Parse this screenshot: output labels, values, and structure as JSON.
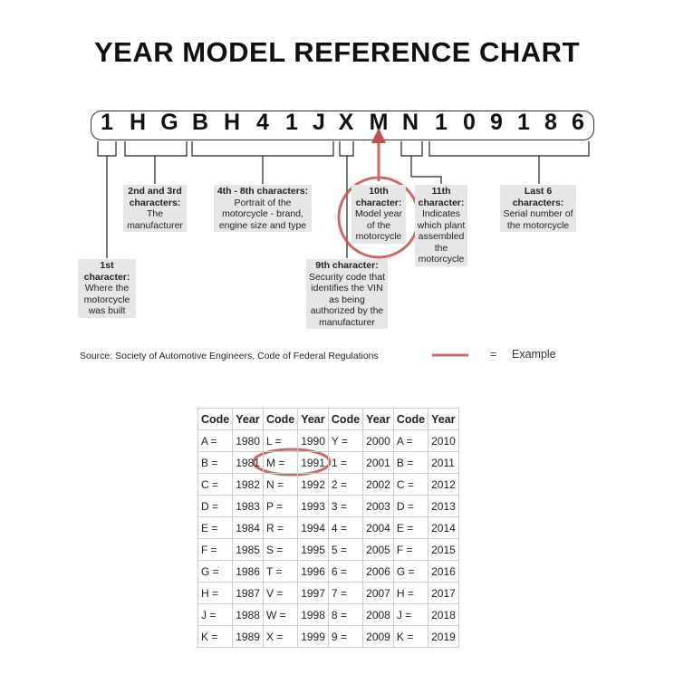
{
  "title": "YEAR MODEL REFERENCE CHART",
  "vin": [
    "1",
    "H",
    "G",
    "B",
    "H",
    "4",
    "1",
    "J",
    "X",
    "M",
    "N",
    "1",
    "0",
    "9",
    "1",
    "8",
    "6"
  ],
  "labels": {
    "c1": {
      "head": "1st character:",
      "body": "Where the motorcycle was built"
    },
    "c23": {
      "head": "2nd and 3rd characters:",
      "body": "The manufacturer"
    },
    "c48": {
      "head": "4th - 8th characters:",
      "body": "Portrait of the motorcycle - brand, engine size and type"
    },
    "c9": {
      "head": "9th character:",
      "body": "Security code that identifies the VIN as being authorized by the manufacturer"
    },
    "c10": {
      "head": "10th character:",
      "body": "Model year of the motorcycle"
    },
    "c11": {
      "head": "11th character:",
      "body": "Indicates which plant assembled the motorcycle"
    },
    "last6": {
      "head": "Last 6 characters:",
      "body": "Serial number of the motorcycle"
    }
  },
  "source": "Source:  Society of Automotive Engineers, Code of Federal Regulations",
  "legend": {
    "equals": "=",
    "label": "Example",
    "color": "#c0504d"
  },
  "table": {
    "headers": [
      "Code",
      "Year",
      "Code",
      "Year",
      "Code",
      "Year",
      "Code",
      "Year"
    ],
    "rows": [
      [
        "A =",
        "1980",
        "L =",
        "1990",
        "Y =",
        "2000",
        "A =",
        "2010"
      ],
      [
        "B =",
        "1981",
        "M =",
        "1991",
        "1 =",
        "2001",
        "B =",
        "2011"
      ],
      [
        "C =",
        "1982",
        "N =",
        "1992",
        "2 =",
        "2002",
        "C =",
        "2012"
      ],
      [
        "D =",
        "1983",
        "P =",
        "1993",
        "3 =",
        "2003",
        "D =",
        "2013"
      ],
      [
        "E =",
        "1984",
        "R =",
        "1994",
        "4 =",
        "2004",
        "E =",
        "2014"
      ],
      [
        "F =",
        "1985",
        "S =",
        "1995",
        "5 =",
        "2005",
        "F =",
        "2015"
      ],
      [
        "G =",
        "1986",
        "T =",
        "1996",
        "6 =",
        "2006",
        "G =",
        "2016"
      ],
      [
        "H =",
        "1987",
        "V =",
        "1997",
        "7 =",
        "2007",
        "H =",
        "2017"
      ],
      [
        "J =",
        "1988",
        "W =",
        "1998",
        "8 =",
        "2008",
        "J =",
        "2018"
      ],
      [
        "K =",
        "1989",
        "X =",
        "1999",
        "9 =",
        "2009",
        "K =",
        "2019"
      ]
    ]
  }
}
